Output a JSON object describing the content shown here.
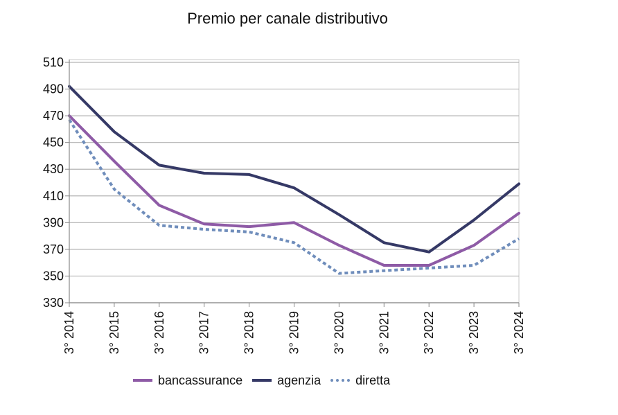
{
  "chart_data": {
    "type": "line",
    "title": "Premio per canale distributivo",
    "xlabel": "",
    "ylabel": "",
    "categories": [
      "3° 2014",
      "3° 2015",
      "3° 2016",
      "3° 2017",
      "3° 2018",
      "3° 2019",
      "3° 2020",
      "3° 2021",
      "3° 2022",
      "3° 2023",
      "3° 2024"
    ],
    "ylim": [
      330,
      510
    ],
    "yticks": [
      "330",
      "350",
      "370",
      "390",
      "410",
      "430",
      "450",
      "470",
      "490",
      "510"
    ],
    "grid": true,
    "legend_position": "bottom",
    "series": [
      {
        "name": "bancassurance",
        "color": "#8e5ba6",
        "style": "solid",
        "values": [
          470,
          436,
          403,
          389,
          387,
          390,
          373,
          358,
          358,
          373,
          397
        ]
      },
      {
        "name": "agenzia",
        "color": "#353966",
        "style": "solid",
        "values": [
          492,
          458,
          433,
          427,
          426,
          416,
          396,
          375,
          368,
          392,
          419
        ]
      },
      {
        "name": "diretta",
        "color": "#6f8dbb",
        "style": "dotted",
        "values": [
          467,
          415,
          388,
          385,
          383,
          375,
          352,
          354,
          356,
          358,
          378
        ]
      }
    ]
  }
}
